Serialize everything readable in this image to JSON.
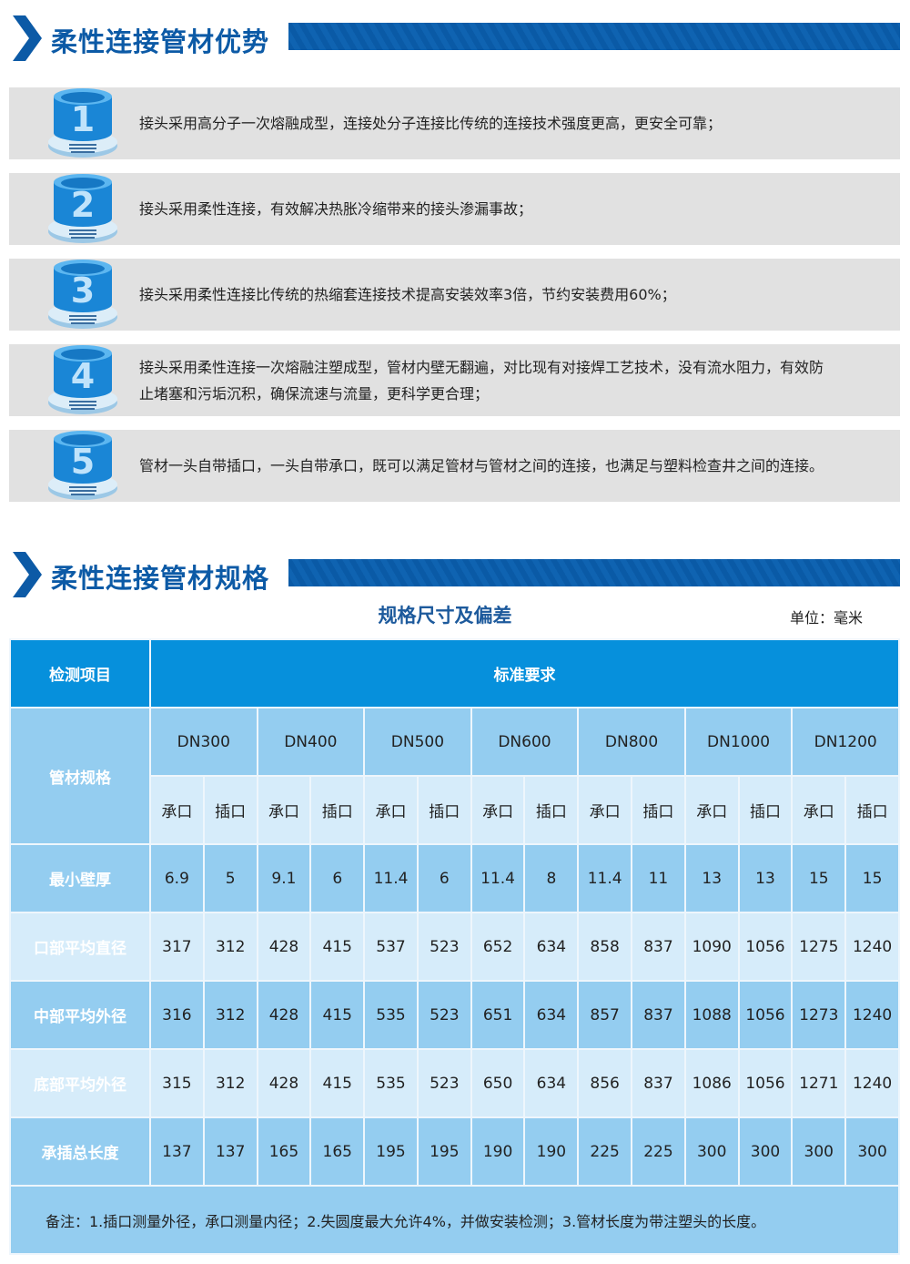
{
  "section1": {
    "title": "柔性连接管材优势"
  },
  "features": [
    {
      "num": "1",
      "text": "接头采用高分子一次熔融成型，连接处分子连接比传统的连接技术强度更高，更安全可靠；"
    },
    {
      "num": "2",
      "text": "接头采用柔性连接，有效解决热胀冷缩带来的接头渗漏事故；"
    },
    {
      "num": "3",
      "text": "接头采用柔性连接比传统的热缩套连接技术提高安装效率3倍，节约安装费用60%；"
    },
    {
      "num": "4",
      "text": "接头采用柔性连接一次熔融注塑成型，管材内壁无翻遍，对比现有对接焊工艺技术，没有流水阻力，有效防止堵塞和污垢沉积，确保流速与流量，更科学更合理；"
    },
    {
      "num": "5",
      "text": "管材一头自带插口，一头自带承口，既可以满足管材与管材之间的连接，也满足与塑料检查井之间的连接。"
    }
  ],
  "section2": {
    "title": "柔性连接管材规格"
  },
  "table": {
    "caption": "规格尺寸及偏差",
    "unit": "单位：毫米",
    "item_header": "检测项目",
    "std_header": "标准要求",
    "spec_header": "管材规格",
    "sizes": [
      "DN300",
      "DN400",
      "DN500",
      "DN600",
      "DN800",
      "DN1000",
      "DN1200"
    ],
    "sub": [
      "承口",
      "插口"
    ],
    "rows": [
      {
        "label": "最小壁厚",
        "values": [
          "6.9",
          "5",
          "9.1",
          "6",
          "11.4",
          "6",
          "11.4",
          "8",
          "11.4",
          "11",
          "13",
          "13",
          "15",
          "15"
        ]
      },
      {
        "label": "口部平均直径",
        "values": [
          "317",
          "312",
          "428",
          "415",
          "537",
          "523",
          "652",
          "634",
          "858",
          "837",
          "1090",
          "1056",
          "1275",
          "1240"
        ]
      },
      {
        "label": "中部平均外径",
        "values": [
          "316",
          "312",
          "428",
          "415",
          "535",
          "523",
          "651",
          "634",
          "857",
          "837",
          "1088",
          "1056",
          "1273",
          "1240"
        ]
      },
      {
        "label": "底部平均外径",
        "values": [
          "315",
          "312",
          "428",
          "415",
          "535",
          "523",
          "650",
          "634",
          "856",
          "837",
          "1086",
          "1056",
          "1271",
          "1240"
        ]
      },
      {
        "label": "承插总长度",
        "values": [
          "137",
          "137",
          "165",
          "165",
          "195",
          "195",
          "190",
          "190",
          "225",
          "225",
          "300",
          "300",
          "300",
          "300"
        ]
      }
    ],
    "note": "备注：1.插口测量外径，承口测量内径；2.失圆度最大允许4%，并做安装检测；3.管材长度为带注塑头的长度。"
  },
  "colors": {
    "brand_blue": "#0c5aa6",
    "header_cell": "#0690dc",
    "row_mid": "#94cdf0",
    "row_light": "#d6ecfa",
    "feature_bg": "#e1e1e1"
  }
}
